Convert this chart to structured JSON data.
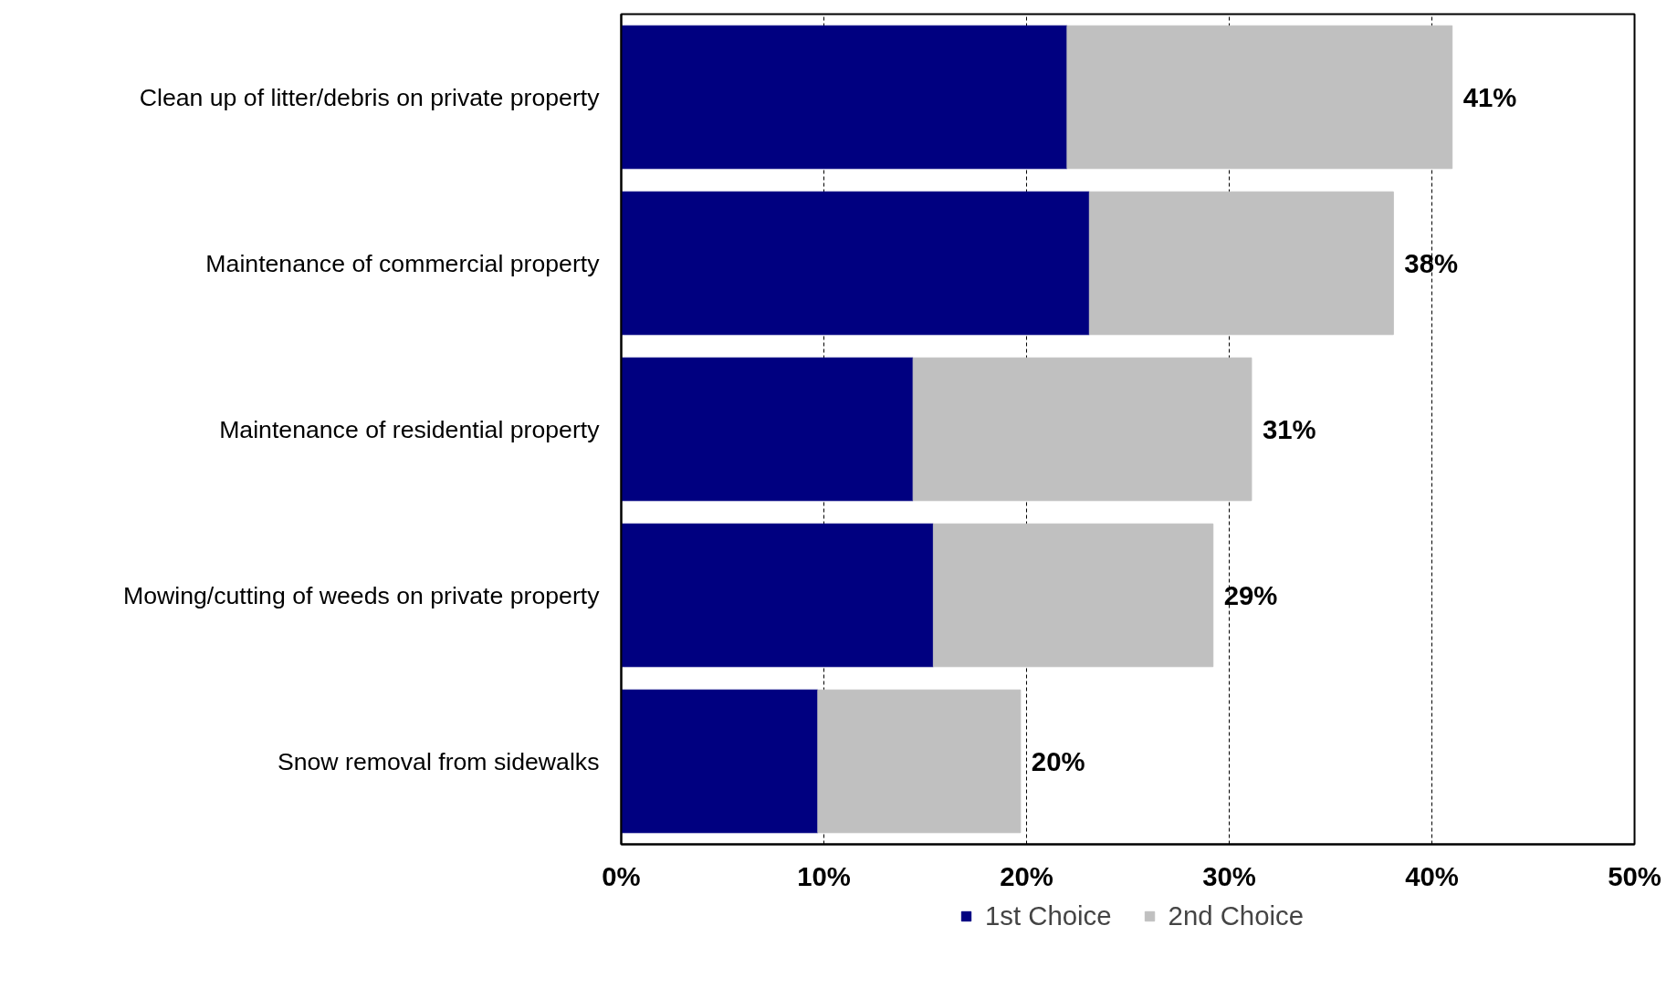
{
  "chart_data": {
    "type": "bar",
    "orientation": "horizontal",
    "stacked": true,
    "categories": [
      "Clean up of litter/debris on private property",
      "Maintenance of commercial property",
      "Maintenance of residential property",
      "Mowing/cutting of weeds on private property",
      "Snow removal from sidewalks"
    ],
    "series": [
      {
        "name": "1st Choice",
        "color": "#000080",
        "values": [
          22,
          23.1,
          14.4,
          15.4,
          9.7
        ]
      },
      {
        "name": "2nd Choice",
        "color": "#c0c0c0",
        "values": [
          19,
          15,
          16.7,
          13.8,
          10
        ]
      }
    ],
    "totals": [
      "41%",
      "38%",
      "31%",
      "29%",
      "20%"
    ],
    "xlim": [
      0,
      50
    ],
    "xticks": [
      {
        "value": 0,
        "label": "0%"
      },
      {
        "value": 10,
        "label": "10%"
      },
      {
        "value": 20,
        "label": "20%"
      },
      {
        "value": 30,
        "label": "30%"
      },
      {
        "value": 40,
        "label": "40%"
      },
      {
        "value": 50,
        "label": "50%"
      }
    ],
    "grid": "x",
    "legend": "bottom"
  }
}
